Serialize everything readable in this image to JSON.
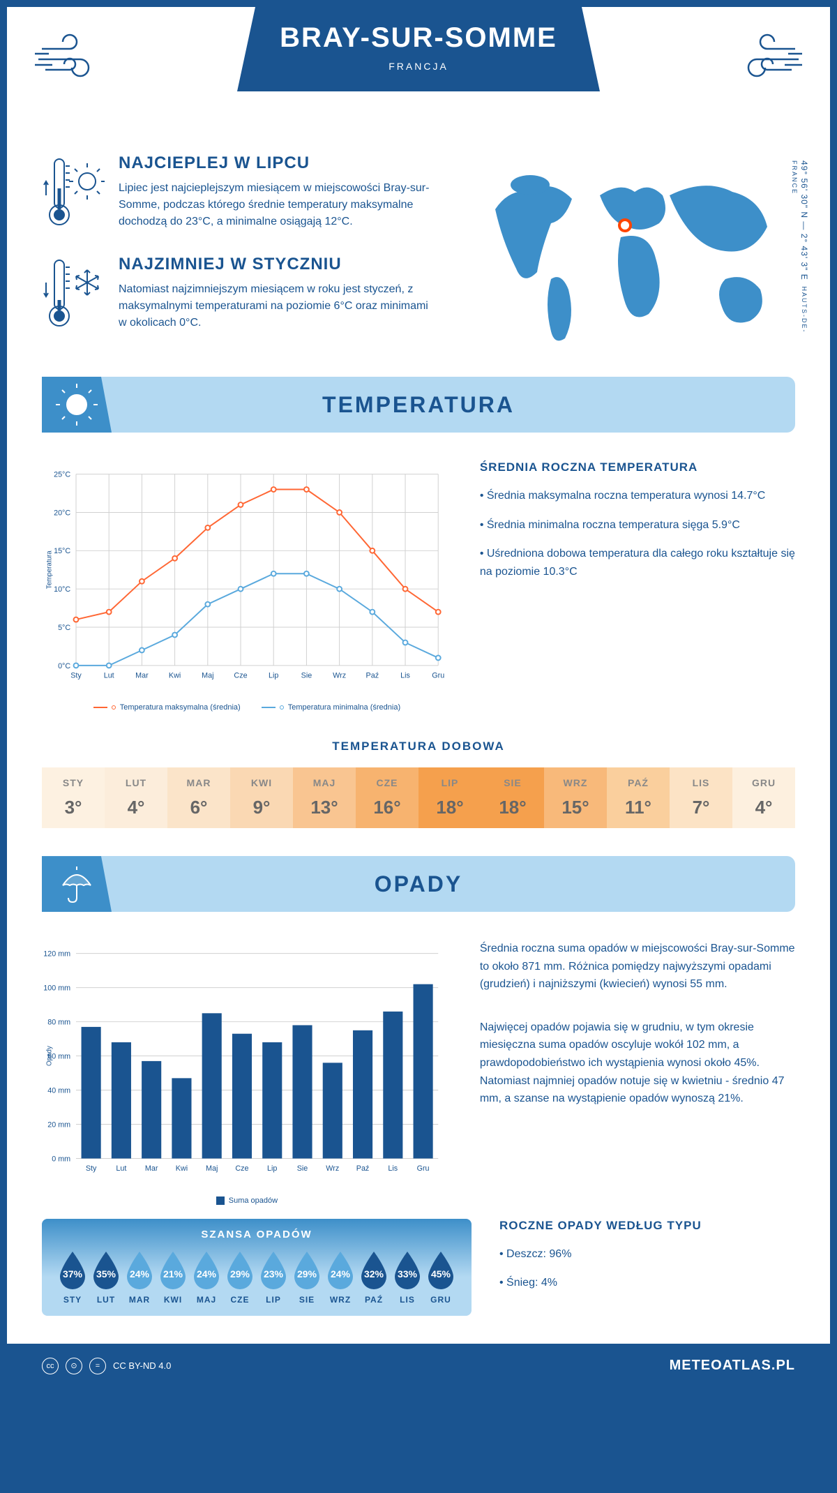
{
  "header": {
    "city": "BRAY-SUR-SOMME",
    "country": "FRANCJA"
  },
  "coords": {
    "lat": "49° 56' 30\" N — 2° 43' 3\" E",
    "region": "HAUTS-DE-FRANCE"
  },
  "warmest": {
    "title": "NAJCIEPLEJ W LIPCU",
    "text": "Lipiec jest najcieplejszym miesiącem w miejscowości Bray-sur-Somme, podczas którego średnie temperatury maksymalne dochodzą do 23°C, a minimalne osiągają 12°C."
  },
  "coldest": {
    "title": "NAJZIMNIEJ W STYCZNIU",
    "text": "Natomiast najzimniejszym miesiącem w roku jest styczeń, z maksymalnymi temperaturami na poziomie 6°C oraz minimami w okolicach 0°C."
  },
  "temp_section": {
    "title": "TEMPERATURA"
  },
  "temp_chart": {
    "months": [
      "Sty",
      "Lut",
      "Mar",
      "Kwi",
      "Maj",
      "Cze",
      "Lip",
      "Sie",
      "Wrz",
      "Paź",
      "Lis",
      "Gru"
    ],
    "max": [
      6,
      7,
      11,
      14,
      18,
      21,
      23,
      23,
      20,
      15,
      10,
      7
    ],
    "min": [
      0,
      0,
      2,
      4,
      8,
      10,
      12,
      12,
      10,
      7,
      3,
      1
    ],
    "max_color": "#ff6633",
    "min_color": "#5aa9dd",
    "grid_color": "#d0d0d0",
    "ylim": [
      0,
      25
    ],
    "ytick": 5,
    "ylabel": "Temperatura",
    "legend_max": "Temperatura maksymalna (średnia)",
    "legend_min": "Temperatura minimalna (średnia)"
  },
  "temp_info": {
    "title": "ŚREDNIA ROCZNA TEMPERATURA",
    "items": [
      "• Średnia maksymalna roczna temperatura wynosi 14.7°C",
      "• Średnia minimalna roczna temperatura sięga 5.9°C",
      "• Uśredniona dobowa temperatura dla całego roku kształtuje się na poziomie 10.3°C"
    ]
  },
  "daily": {
    "title": "TEMPERATURA DOBOWA",
    "months": [
      "STY",
      "LUT",
      "MAR",
      "KWI",
      "MAJ",
      "CZE",
      "LIP",
      "SIE",
      "WRZ",
      "PAŹ",
      "LIS",
      "GRU"
    ],
    "values": [
      "3°",
      "4°",
      "6°",
      "9°",
      "13°",
      "16°",
      "18°",
      "18°",
      "15°",
      "11°",
      "7°",
      "4°"
    ],
    "colors": [
      "#fdf1e1",
      "#fceddb",
      "#fbe4c9",
      "#fad8b3",
      "#f9c591",
      "#f7b36f",
      "#f5a04d",
      "#f5a04d",
      "#f8b97a",
      "#facf9d",
      "#fce3c5",
      "#fdf0df"
    ]
  },
  "precip_section": {
    "title": "OPADY"
  },
  "precip_chart": {
    "months": [
      "Sty",
      "Lut",
      "Mar",
      "Kwi",
      "Maj",
      "Cze",
      "Lip",
      "Sie",
      "Wrz",
      "Paź",
      "Lis",
      "Gru"
    ],
    "values": [
      77,
      68,
      57,
      47,
      85,
      73,
      68,
      78,
      56,
      75,
      86,
      102
    ],
    "color": "#1a5490",
    "ylim": [
      0,
      120
    ],
    "ytick": 20,
    "ylabel": "Opady",
    "legend": "Suma opadów"
  },
  "precip_info": {
    "p1": "Średnia roczna suma opadów w miejscowości Bray-sur-Somme to około 871 mm. Różnica pomiędzy najwyższymi opadami (grudzień) i najniższymi (kwiecień) wynosi 55 mm.",
    "p2": "Najwięcej opadów pojawia się w grudniu, w tym okresie miesięczna suma opadów oscyluje wokół 102 mm, a prawdopodobieństwo ich wystąpienia wynosi około 45%. Natomiast najmniej opadów notuje się w kwietniu - średnio 47 mm, a szanse na wystąpienie opadów wynoszą 21%."
  },
  "chance": {
    "title": "SZANSA OPADÓW",
    "months": [
      "STY",
      "LUT",
      "MAR",
      "KWI",
      "MAJ",
      "CZE",
      "LIP",
      "SIE",
      "WRZ",
      "PAŹ",
      "LIS",
      "GRU"
    ],
    "values": [
      37,
      35,
      24,
      21,
      24,
      29,
      23,
      29,
      24,
      32,
      33,
      45
    ],
    "light": "#5aa9dd",
    "dark": "#1a5490",
    "threshold": 30
  },
  "precip_type": {
    "title": "ROCZNE OPADY WEDŁUG TYPU",
    "rain": "• Deszcz: 96%",
    "snow": "• Śnieg: 4%"
  },
  "footer": {
    "license": "CC BY-ND 4.0",
    "site": "METEOATLAS.PL"
  }
}
